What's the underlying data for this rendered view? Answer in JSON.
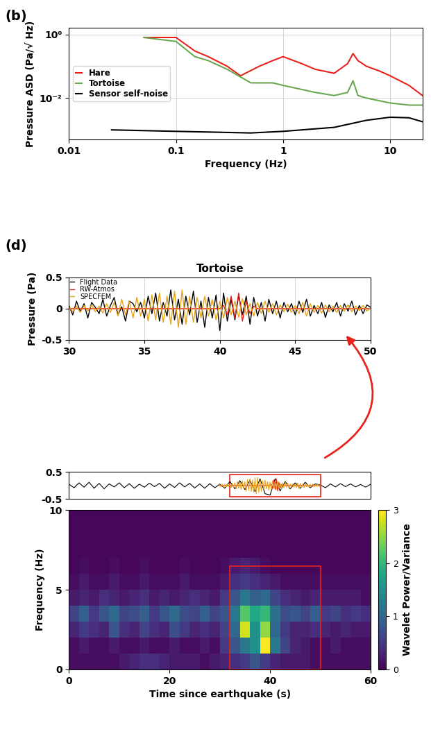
{
  "chart_data": [
    {
      "type": "line",
      "panel": "(b)",
      "log": true,
      "grid": true,
      "legend": "center left",
      "xlabel": "Frequency (Hz)",
      "ylabel": "Pressure ASD (Pa/√ Hz)",
      "xlim": [
        0.01,
        20
      ],
      "ylim": [
        0.0005,
        1.6
      ],
      "xticks": [
        0.01,
        0.1,
        1,
        10
      ],
      "yticks": [
        {
          "value": 1,
          "label": "10⁰"
        },
        {
          "value": 0.01,
          "label": "10⁻²"
        }
      ],
      "series": [
        {
          "name": "Hare",
          "color": "#e8221b",
          "x": [
            0.05,
            0.1,
            0.15,
            0.2,
            0.3,
            0.4,
            0.6,
            0.8,
            1,
            1.5,
            2,
            3,
            4,
            4.5,
            5,
            6,
            8,
            10,
            15,
            20
          ],
          "values": [
            0.8,
            0.8,
            0.3,
            0.2,
            0.1,
            0.05,
            0.1,
            0.15,
            0.2,
            0.12,
            0.08,
            0.06,
            0.12,
            0.25,
            0.15,
            0.1,
            0.07,
            0.05,
            0.025,
            0.012
          ]
        },
        {
          "name": "Tortoise",
          "color": "#6aa84f",
          "x": [
            0.05,
            0.1,
            0.15,
            0.2,
            0.3,
            0.5,
            0.8,
            1,
            2,
            3,
            4,
            4.5,
            5,
            6,
            10,
            15,
            20
          ],
          "values": [
            0.8,
            0.6,
            0.2,
            0.15,
            0.08,
            0.03,
            0.03,
            0.025,
            0.015,
            0.012,
            0.015,
            0.035,
            0.012,
            0.01,
            0.007,
            0.006,
            0.006
          ]
        },
        {
          "name": "Sensor self-noise",
          "color": "#000000",
          "x": [
            0.025,
            0.1,
            0.5,
            1,
            3,
            6,
            10,
            15,
            20
          ],
          "values": [
            0.001,
            0.0009,
            0.0008,
            0.0009,
            0.0012,
            0.002,
            0.0025,
            0.0024,
            0.0018
          ]
        }
      ]
    },
    {
      "type": "line",
      "panel": "(d)",
      "title": "Tortoise",
      "ylabel": "Pressure (Pa)",
      "legend": "upper left",
      "xlim": [
        30,
        50
      ],
      "ylim": [
        -0.5,
        0.5
      ],
      "xticks": [
        30,
        35,
        40,
        45,
        50
      ],
      "yticks": [
        -0.5,
        0,
        0.5
      ],
      "grid": true,
      "x": [
        30,
        30.25,
        30.5,
        30.75,
        31,
        31.25,
        31.5,
        31.75,
        32,
        32.25,
        32.5,
        32.75,
        33,
        33.25,
        33.5,
        33.75,
        34,
        34.25,
        34.5,
        34.75,
        35,
        35.25,
        35.5,
        35.75,
        36,
        36.25,
        36.5,
        36.75,
        37,
        37.25,
        37.5,
        37.75,
        38,
        38.25,
        38.5,
        38.75,
        39,
        39.25,
        39.5,
        39.75,
        40,
        40.25,
        40.5,
        40.75,
        41,
        41.25,
        41.5,
        41.75,
        42,
        42.25,
        42.5,
        42.75,
        43,
        43.25,
        43.5,
        43.75,
        44,
        44.25,
        44.5,
        44.75,
        45,
        45.25,
        45.5,
        45.75,
        46,
        46.25,
        46.5,
        46.75,
        47,
        47.25,
        47.5,
        47.75,
        48,
        48.25,
        48.5,
        48.75,
        49,
        49.25,
        49.5,
        49.75,
        50
      ],
      "series": [
        {
          "name": "Flight Data",
          "color": "#000000",
          "values": [
            0.05,
            -0.1,
            0.12,
            -0.05,
            0.08,
            -0.15,
            0.1,
            0.02,
            -0.08,
            0.15,
            -0.12,
            0.05,
            0.18,
            -0.1,
            0.03,
            -0.2,
            0.12,
            0.08,
            -0.05,
            0.1,
            -0.15,
            0.2,
            -0.08,
            0.25,
            -0.2,
            0.1,
            -0.12,
            0.3,
            -0.18,
            0.15,
            -0.25,
            0.2,
            -0.1,
            0.28,
            -0.22,
            0.12,
            -0.3,
            0.18,
            -0.15,
            0.22,
            -0.35,
            0.25,
            -0.2,
            0.15,
            -0.18,
            0.22,
            -0.1,
            0.2,
            -0.25,
            0.18,
            -0.12,
            0.1,
            -0.2,
            0.15,
            -0.08,
            0.12,
            -0.15,
            0.1,
            -0.05,
            0.08,
            -0.1,
            0.12,
            -0.06,
            0.15,
            -0.12,
            0.05,
            -0.08,
            0.1,
            -0.14,
            0.06,
            -0.05,
            0.1,
            -0.12,
            0.08,
            -0.04,
            0.12,
            -0.1,
            0.05,
            -0.08,
            0.06,
            0.02
          ]
        },
        {
          "name": "RW-Atmos",
          "color": "#e8221b",
          "values": [
            0,
            0,
            0,
            0,
            0,
            0,
            0,
            0,
            0,
            0,
            0,
            0,
            0,
            0,
            0,
            0,
            0,
            0,
            0,
            0,
            0,
            0,
            0,
            0,
            0,
            0,
            0,
            0,
            0,
            0,
            0,
            0,
            0,
            0,
            0,
            0,
            0,
            0,
            0,
            0,
            0,
            0.05,
            -0.1,
            0.2,
            -0.15,
            0.25,
            -0.2,
            0.12,
            -0.08,
            0.04,
            0,
            0,
            0,
            0,
            0,
            0,
            0,
            0,
            0,
            0,
            0,
            0,
            0,
            0,
            0,
            0,
            0,
            0,
            0,
            0,
            0,
            0,
            0,
            0,
            0,
            0,
            0,
            0,
            0,
            0,
            0
          ]
        },
        {
          "name": "SPECFEM",
          "color": "#e8a317",
          "values": [
            0.03,
            -0.05,
            0.04,
            -0.06,
            0.05,
            -0.04,
            0.06,
            -0.05,
            0.04,
            -0.07,
            0.08,
            -0.06,
            0.1,
            -0.12,
            0.15,
            -0.1,
            0.12,
            -0.15,
            0.18,
            -0.12,
            0.15,
            -0.2,
            0.22,
            -0.18,
            0.25,
            -0.22,
            0.2,
            -0.25,
            0.28,
            -0.3,
            0.3,
            -0.25,
            0.2,
            -0.22,
            0.18,
            -0.15,
            0.2,
            -0.12,
            0.15,
            -0.18,
            0.12,
            -0.15,
            0.18,
            -0.1,
            0.12,
            -0.14,
            0.16,
            -0.1,
            0.08,
            -0.12,
            0.1,
            -0.08,
            0.12,
            -0.06,
            0.08,
            -0.1,
            0.06,
            -0.05,
            0.07,
            -0.06,
            0.05,
            -0.08,
            0.1,
            -0.12,
            0.08,
            -0.06,
            0.05,
            -0.07,
            0.06,
            -0.05,
            0.04,
            -0.06,
            0.05,
            -0.04,
            0.06,
            -0.05,
            0.04,
            -0.03,
            0.05,
            -0.04,
            0.02
          ]
        }
      ]
    },
    {
      "type": "line",
      "tick_labels": "y",
      "xlim": [
        0,
        60
      ],
      "ylim": [
        -0.5,
        0.5
      ],
      "yticks": [
        -0.5,
        0.5
      ],
      "zoom_box": {
        "x": [
          32,
          50
        ],
        "y": [
          -0.4,
          0.4
        ]
      },
      "x": [
        0,
        1,
        2,
        3,
        4,
        5,
        6,
        7,
        8,
        9,
        10,
        11,
        12,
        13,
        14,
        15,
        16,
        17,
        18,
        19,
        20,
        21,
        22,
        23,
        24,
        25,
        26,
        27,
        28,
        29,
        30,
        31,
        32,
        33,
        34,
        35,
        36,
        37,
        38,
        39,
        40,
        41,
        42,
        43,
        44,
        45,
        46,
        47,
        48,
        49,
        50,
        51,
        52,
        53,
        54,
        55,
        56,
        57,
        58,
        59,
        60
      ],
      "series": [
        {
          "name": "Flight Data",
          "color": "#000000",
          "values": [
            0.05,
            -0.08,
            0.1,
            -0.06,
            0.12,
            -0.1,
            0.08,
            -0.12,
            0.06,
            -0.05,
            0.1,
            -0.08,
            0.07,
            -0.1,
            0.05,
            -0.06,
            0.09,
            -0.04,
            0.08,
            -0.1,
            0.06,
            -0.07,
            0.1,
            -0.05,
            0.08,
            -0.09,
            0.06,
            -0.1,
            0.07,
            -0.08,
            0.05,
            -0.1,
            0.15,
            -0.12,
            0.18,
            -0.15,
            0.2,
            -0.22,
            0.25,
            -0.3,
            -0.35,
            0.25,
            -0.2,
            0.15,
            -0.12,
            0.1,
            -0.1,
            0.12,
            -0.08,
            0.06,
            0.02,
            -0.08,
            0.06,
            -0.05,
            0.07,
            -0.04,
            0.06,
            -0.05,
            0.04,
            -0.06,
            0.05
          ]
        }
      ]
    },
    {
      "type": "heatmap",
      "xlabel": "Time since earthquake (s)",
      "ylabel": "Frequency (Hz)",
      "xlim": [
        0,
        60
      ],
      "ylim": [
        0,
        10
      ],
      "xticks": [
        0,
        20,
        40,
        60
      ],
      "yticks": [
        0,
        5,
        10
      ],
      "colorbar_label": "Wavelet Power/Variance",
      "colorbar_range": [
        0,
        3
      ],
      "colorbar_ticks": [
        0,
        1,
        2,
        3
      ],
      "zoom_box": {
        "x": [
          32,
          50
        ],
        "y": [
          0,
          6.5
        ]
      },
      "time_bins": [
        0,
        2,
        4,
        6,
        8,
        10,
        12,
        14,
        16,
        18,
        20,
        22,
        24,
        26,
        28,
        30,
        32,
        34,
        36,
        38,
        40,
        42,
        44,
        46,
        48,
        50,
        52,
        54,
        56,
        58,
        60
      ],
      "freq_bins": [
        0,
        1,
        2,
        3,
        4,
        5,
        6,
        7,
        8,
        9,
        10
      ],
      "cells": [
        [
          0.1,
          0.1,
          0.1,
          0.1,
          0.1,
          0.2,
          0.3,
          0.4,
          0.4,
          0.3,
          0.2,
          0.2,
          0.2,
          0.1,
          0.2,
          0.3,
          0.4,
          0.5,
          0.8,
          0.5,
          0.3,
          0.2,
          0.2,
          0.2,
          0.1,
          0.1,
          0.1,
          0.1,
          0.1,
          0.1
        ],
        [
          0.1,
          0.2,
          0.1,
          0.1,
          0.2,
          0.1,
          0.1,
          0.2,
          0.1,
          0.1,
          0.2,
          0.1,
          0.1,
          0.2,
          0.1,
          0.5,
          0.8,
          1.2,
          1.5,
          3.0,
          1.2,
          0.6,
          0.3,
          0.2,
          0.1,
          0.1,
          0.2,
          0.1,
          0.1,
          0.1
        ],
        [
          0.3,
          0.5,
          0.4,
          0.3,
          0.8,
          0.4,
          0.3,
          0.6,
          0.4,
          0.3,
          0.7,
          0.5,
          0.3,
          0.4,
          0.3,
          0.6,
          1.0,
          2.8,
          1.5,
          2.5,
          1.0,
          0.5,
          0.3,
          0.3,
          0.4,
          0.3,
          0.2,
          0.3,
          0.2,
          0.2
        ],
        [
          0.6,
          0.9,
          0.5,
          0.8,
          1.0,
          0.6,
          0.7,
          0.9,
          0.5,
          0.8,
          1.0,
          0.7,
          0.6,
          0.9,
          0.6,
          0.8,
          1.2,
          2.2,
          1.8,
          2.0,
          1.1,
          0.7,
          0.8,
          0.6,
          0.9,
          0.5,
          0.6,
          0.4,
          0.5,
          0.4
        ],
        [
          0.2,
          0.3,
          0.2,
          0.4,
          0.3,
          0.2,
          0.3,
          0.4,
          0.2,
          0.3,
          0.2,
          0.3,
          0.4,
          0.3,
          0.2,
          0.5,
          0.8,
          1.2,
          0.9,
          1.0,
          0.6,
          0.4,
          0.3,
          0.2,
          0.3,
          0.2,
          0.2,
          0.2,
          0.2,
          0.1
        ],
        [
          0.1,
          0.2,
          0.1,
          0.1,
          0.2,
          0.1,
          0.1,
          0.2,
          0.1,
          0.1,
          0.1,
          0.2,
          0.1,
          0.1,
          0.1,
          0.2,
          0.4,
          0.5,
          0.4,
          0.3,
          0.2,
          0.1,
          0.1,
          0.1,
          0.1,
          0.1,
          0.1,
          0.1,
          0.1,
          0.1
        ],
        [
          0.05,
          0.1,
          0.05,
          0.05,
          0.1,
          0.05,
          0.05,
          0.1,
          0.05,
          0.05,
          0.05,
          0.1,
          0.05,
          0.05,
          0.05,
          0.1,
          0.2,
          0.3,
          0.2,
          0.1,
          0.05,
          0.05,
          0.05,
          0.05,
          0.05,
          0.05,
          0.05,
          0.05,
          0.05,
          0.05
        ],
        [
          0.05,
          0.05,
          0.05,
          0.05,
          0.05,
          0.05,
          0.05,
          0.05,
          0.05,
          0.05,
          0.05,
          0.05,
          0.05,
          0.05,
          0.05,
          0.05,
          0.05,
          0.05,
          0.05,
          0.05,
          0.05,
          0.05,
          0.05,
          0.05,
          0.05,
          0.05,
          0.05,
          0.05,
          0.05,
          0.05
        ],
        [
          0.05,
          0.05,
          0.05,
          0.05,
          0.05,
          0.05,
          0.05,
          0.05,
          0.05,
          0.05,
          0.05,
          0.05,
          0.05,
          0.05,
          0.05,
          0.05,
          0.05,
          0.05,
          0.05,
          0.05,
          0.05,
          0.05,
          0.05,
          0.05,
          0.05,
          0.05,
          0.05,
          0.05,
          0.05,
          0.05
        ],
        [
          0.05,
          0.05,
          0.05,
          0.05,
          0.05,
          0.05,
          0.05,
          0.05,
          0.05,
          0.05,
          0.05,
          0.05,
          0.05,
          0.05,
          0.05,
          0.05,
          0.05,
          0.05,
          0.05,
          0.05,
          0.05,
          0.05,
          0.05,
          0.05,
          0.05,
          0.05,
          0.05,
          0.05,
          0.05,
          0.05
        ]
      ]
    }
  ]
}
